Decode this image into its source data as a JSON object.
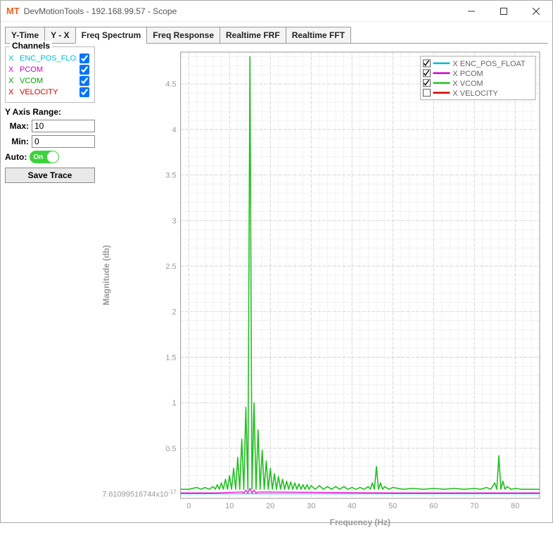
{
  "window": {
    "app_icon_text": "MT",
    "title": "DevMotionTools - 192.168.99.57 - Scope"
  },
  "tabs": [
    {
      "label": "Y-Time",
      "active": false
    },
    {
      "label": "Y - X",
      "active": false
    },
    {
      "label": "Freq Spectrum",
      "active": true
    },
    {
      "label": "Freq Response",
      "active": false
    },
    {
      "label": "Realtime FRF",
      "active": false
    },
    {
      "label": "Realtime FFT",
      "active": false
    }
  ],
  "sidebar": {
    "channels_title": "Channels",
    "channels": [
      {
        "axis": "X",
        "label": "ENC_POS_FLOAT",
        "color": "#00bcd4",
        "checked": true
      },
      {
        "axis": "X",
        "label": "PCOM",
        "color": "#d000d0",
        "checked": true
      },
      {
        "axis": "X",
        "label": "VCOM",
        "color": "#00a000",
        "checked": true
      },
      {
        "axis": "X",
        "label": "VELOCITY",
        "color": "#d00000",
        "checked": true
      }
    ],
    "range_label": "Y Axis Range:",
    "max_label": "Max:",
    "max_value": "10",
    "min_label": "Min:",
    "min_value": "0",
    "auto_label": "Auto:",
    "auto_state": "On",
    "save_label": "Save Trace"
  },
  "chart": {
    "type": "line",
    "xlabel": "Frequency (Hz)",
    "ylabel": "Magnitude (db)",
    "background_color": "#ffffff",
    "grid_major_color": "#cccccc",
    "grid_minor_color": "#e6e6e6",
    "axis_color": "#999999",
    "xlim": [
      -2,
      86
    ],
    "ylim": [
      -0.05,
      4.85
    ],
    "xticks": [
      0,
      10,
      20,
      30,
      40,
      50,
      60,
      70,
      80
    ],
    "yticks_special_first": "7.61099516744x10",
    "yticks_special_exp": "-17",
    "yticks": [
      0.5,
      1,
      1.5,
      2,
      2.5,
      3,
      3.5,
      4,
      4.5
    ],
    "x_minor_step": 2,
    "y_minor_step": 0.1,
    "legend": {
      "items": [
        {
          "label": "X ENC_POS_FLOAT",
          "color": "#00bcd4",
          "checked": true
        },
        {
          "label": "X PCOM",
          "color": "#d000d0",
          "checked": true
        },
        {
          "label": "X VCOM",
          "color": "#20c020",
          "checked": true
        },
        {
          "label": "X VELOCITY",
          "color": "#d00000",
          "checked": false
        }
      ]
    },
    "series": {
      "vcom": {
        "color": "#20c020",
        "width": 1.6,
        "baseline": 0.05,
        "peaks": [
          {
            "x": 2,
            "y": 0.07
          },
          {
            "x": 4,
            "y": 0.07
          },
          {
            "x": 6,
            "y": 0.08
          },
          {
            "x": 7,
            "y": 0.1
          },
          {
            "x": 8,
            "y": 0.12
          },
          {
            "x": 9,
            "y": 0.16
          },
          {
            "x": 10,
            "y": 0.2
          },
          {
            "x": 11,
            "y": 0.28
          },
          {
            "x": 12,
            "y": 0.4
          },
          {
            "x": 13,
            "y": 0.6
          },
          {
            "x": 14,
            "y": 0.95
          },
          {
            "x": 15,
            "y": 4.8
          },
          {
            "x": 16,
            "y": 1.0
          },
          {
            "x": 17,
            "y": 0.7
          },
          {
            "x": 18,
            "y": 0.48
          },
          {
            "x": 19,
            "y": 0.36
          },
          {
            "x": 20,
            "y": 0.28
          },
          {
            "x": 21,
            "y": 0.22
          },
          {
            "x": 22,
            "y": 0.19
          },
          {
            "x": 23,
            "y": 0.16
          },
          {
            "x": 24,
            "y": 0.14
          },
          {
            "x": 25,
            "y": 0.13
          },
          {
            "x": 26,
            "y": 0.12
          },
          {
            "x": 27,
            "y": 0.11
          },
          {
            "x": 28,
            "y": 0.1
          },
          {
            "x": 29,
            "y": 0.1
          },
          {
            "x": 30,
            "y": 0.09
          },
          {
            "x": 32,
            "y": 0.09
          },
          {
            "x": 34,
            "y": 0.08
          },
          {
            "x": 36,
            "y": 0.08
          },
          {
            "x": 38,
            "y": 0.08
          },
          {
            "x": 40,
            "y": 0.07
          },
          {
            "x": 42,
            "y": 0.07
          },
          {
            "x": 44,
            "y": 0.08
          },
          {
            "x": 45,
            "y": 0.12
          },
          {
            "x": 46,
            "y": 0.3
          },
          {
            "x": 47,
            "y": 0.12
          },
          {
            "x": 48,
            "y": 0.08
          },
          {
            "x": 50,
            "y": 0.07
          },
          {
            "x": 55,
            "y": 0.06
          },
          {
            "x": 60,
            "y": 0.06
          },
          {
            "x": 65,
            "y": 0.06
          },
          {
            "x": 70,
            "y": 0.06
          },
          {
            "x": 73,
            "y": 0.07
          },
          {
            "x": 75,
            "y": 0.12
          },
          {
            "x": 76,
            "y": 0.42
          },
          {
            "x": 77,
            "y": 0.14
          },
          {
            "x": 78,
            "y": 0.08
          },
          {
            "x": 80,
            "y": 0.06
          },
          {
            "x": 83,
            "y": 0.05
          },
          {
            "x": 86,
            "y": 0.05
          }
        ]
      },
      "pcom": {
        "color": "#d000d0",
        "width": 1.2,
        "baseline": 0.01,
        "peaks": [
          {
            "x": 0,
            "y": 0.01
          },
          {
            "x": 13,
            "y": 0.02
          },
          {
            "x": 14,
            "y": 0.04
          },
          {
            "x": 15,
            "y": 0.06
          },
          {
            "x": 16,
            "y": 0.04
          },
          {
            "x": 17,
            "y": 0.02
          },
          {
            "x": 86,
            "y": 0.01
          }
        ]
      },
      "enc": {
        "color": "#00bcd4",
        "width": 1.0,
        "baseline": 0.0,
        "peaks": [
          {
            "x": 0,
            "y": 0.0
          },
          {
            "x": 86,
            "y": 0.0
          }
        ]
      }
    }
  }
}
